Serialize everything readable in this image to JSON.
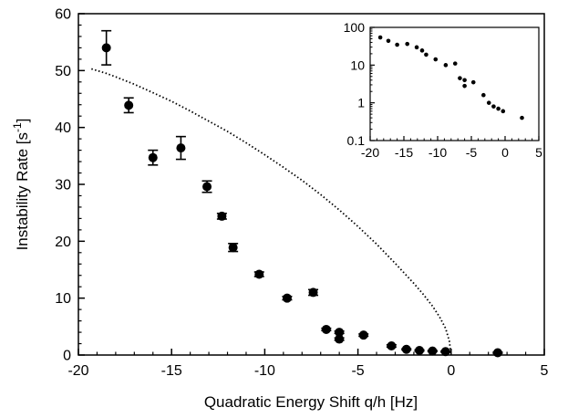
{
  "chart_data": [
    {
      "type": "scatter",
      "xlabel": "Quadratic Energy Shift q/h [Hz]",
      "ylabel": {
        "base": "Instability Rate [s",
        "sup": "-1",
        "tail": "]"
      },
      "xlim": [
        -20,
        5
      ],
      "ylim": [
        0,
        60
      ],
      "xticks": [
        -20,
        -15,
        -10,
        -5,
        0,
        5
      ],
      "xtick_labels": [
        "-20",
        "-15",
        "-10",
        "-5",
        "0",
        "5"
      ],
      "yticks": [
        0,
        10,
        20,
        30,
        40,
        50,
        60
      ],
      "ytick_labels": [
        "0",
        "10",
        "20",
        "30",
        "40",
        "50",
        "60"
      ],
      "grid": false,
      "legend": "none",
      "series": [
        {
          "style": "markers-with-error-bars",
          "color": "#000000",
          "points": [
            {
              "x": -18.5,
              "y": 54.0,
              "err": 3.0
            },
            {
              "x": -17.3,
              "y": 43.9,
              "err": 1.3
            },
            {
              "x": -16.0,
              "y": 34.7,
              "err": 1.3
            },
            {
              "x": -14.5,
              "y": 36.4,
              "err": 2.0
            },
            {
              "x": -13.1,
              "y": 29.6,
              "err": 1.0
            },
            {
              "x": -12.3,
              "y": 24.4,
              "err": 0.5
            },
            {
              "x": -11.7,
              "y": 18.9,
              "err": 0.7
            },
            {
              "x": -10.3,
              "y": 14.2,
              "err": 0.4
            },
            {
              "x": -8.8,
              "y": 10.0,
              "err": 0.3
            },
            {
              "x": -7.4,
              "y": 11.0,
              "err": 0.5
            },
            {
              "x": -6.7,
              "y": 4.5,
              "err": 0.2
            },
            {
              "x": -6.0,
              "y": 4.0,
              "err": 0.2
            },
            {
              "x": -6.0,
              "y": 2.8,
              "err": 0.2
            },
            {
              "x": -4.7,
              "y": 3.5,
              "err": 0.2
            },
            {
              "x": -3.2,
              "y": 1.6,
              "err": 0.2
            },
            {
              "x": -2.4,
              "y": 1.0,
              "err": 0.1
            },
            {
              "x": -1.7,
              "y": 0.8,
              "err": 0.1
            },
            {
              "x": -1.0,
              "y": 0.7,
              "err": 0.1
            },
            {
              "x": -0.3,
              "y": 0.6,
              "err": 0.1
            },
            {
              "x": 2.5,
              "y": 0.4,
              "err": 0.1
            }
          ]
        },
        {
          "style": "dotted-line",
          "color": "#000000",
          "x": [
            -19.3,
            -19.0,
            -18.5,
            -18.0,
            -17.0,
            -16.0,
            -15.0,
            -14.0,
            -13.0,
            -12.0,
            -11.0,
            -10.0,
            -9.0,
            -8.0,
            -7.0,
            -6.0,
            -5.0,
            -4.0,
            -3.0,
            -2.0,
            -1.5,
            -1.0,
            -0.6,
            -0.3,
            -0.1,
            0.0
          ],
          "y": [
            50.3,
            50.0,
            49.5,
            48.9,
            47.6,
            46.1,
            44.6,
            42.9,
            41.1,
            39.3,
            37.3,
            35.2,
            33.0,
            30.7,
            28.2,
            25.5,
            22.6,
            19.5,
            16.1,
            12.6,
            10.7,
            8.6,
            6.6,
            4.7,
            2.5,
            0.0
          ]
        }
      ]
    },
    {
      "type": "scatter",
      "inset": true,
      "yscale": "log",
      "xlim": [
        -20,
        5
      ],
      "ylim": [
        0.1,
        100
      ],
      "xticks": [
        -20,
        -15,
        -10,
        -5,
        0,
        5
      ],
      "xtick_labels": [
        "-20",
        "-15",
        "-10",
        "-5",
        "0",
        "5"
      ],
      "yticks": [
        0.1,
        1,
        10,
        100
      ],
      "ytick_labels": [
        "0.1",
        "1",
        "10",
        "100"
      ],
      "grid": false,
      "legend": "none",
      "series": [
        {
          "style": "markers",
          "color": "#000000",
          "points": [
            {
              "x": -18.5,
              "y": 54.0
            },
            {
              "x": -17.3,
              "y": 43.9
            },
            {
              "x": -16.0,
              "y": 34.7
            },
            {
              "x": -14.5,
              "y": 36.4
            },
            {
              "x": -13.1,
              "y": 29.6
            },
            {
              "x": -12.3,
              "y": 24.4
            },
            {
              "x": -11.7,
              "y": 18.9
            },
            {
              "x": -10.3,
              "y": 14.2
            },
            {
              "x": -8.8,
              "y": 10.0
            },
            {
              "x": -7.4,
              "y": 11.0
            },
            {
              "x": -6.7,
              "y": 4.5
            },
            {
              "x": -6.0,
              "y": 4.0
            },
            {
              "x": -6.0,
              "y": 2.8
            },
            {
              "x": -4.7,
              "y": 3.5
            },
            {
              "x": -3.2,
              "y": 1.6
            },
            {
              "x": -2.4,
              "y": 1.0
            },
            {
              "x": -1.7,
              "y": 0.8
            },
            {
              "x": -1.0,
              "y": 0.7
            },
            {
              "x": -0.3,
              "y": 0.6
            },
            {
              "x": 2.5,
              "y": 0.4
            }
          ]
        }
      ]
    }
  ]
}
